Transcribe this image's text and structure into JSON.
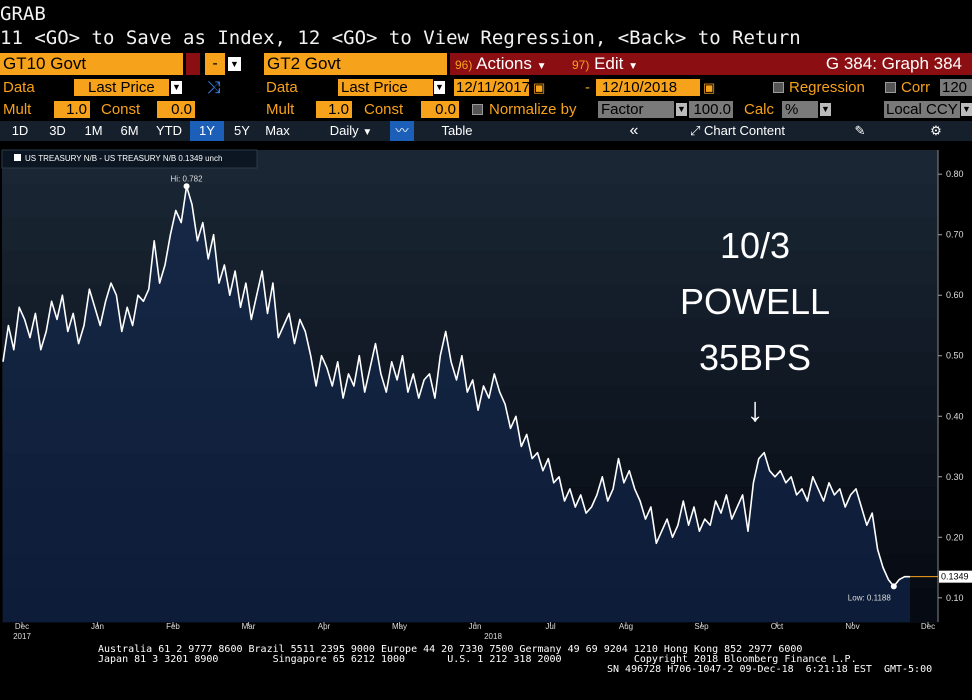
{
  "terminal": {
    "title": "GRAB",
    "command": "11 <GO> to Save as Index, 12 <GO> to View Regression, <Back> to Return"
  },
  "security_bar": {
    "security1": "GT10 Govt",
    "operator": "-",
    "security2": "GT2 Govt",
    "actions_num": "96)",
    "actions_label": "Actions",
    "edit_num": "97)",
    "edit_label": "Edit",
    "graph_id": "G 384: Graph 384"
  },
  "data_bar": {
    "data_label": "Data",
    "data1_value": "Last Price",
    "data2_label": "Data",
    "data2_value": "Last Price",
    "start_date": "12/11/2017",
    "date_sep": "-",
    "end_date": "12/10/2018",
    "regression_label": "Regression",
    "corr_label": "Corr",
    "corr_value": "120"
  },
  "mult_bar": {
    "mult_label": "Mult",
    "mult1": "1.0",
    "const_label": "Const",
    "const1": "0.0",
    "mult2_label": "Mult",
    "mult2": "1.0",
    "const2_label": "Const",
    "const2": "0.0",
    "normalize_label": "Normalize by",
    "normalize_value": "Factor",
    "normalize_amount": "100.0",
    "calc_label": "Calc",
    "calc_value": "%",
    "ccy_value": "Local CCY"
  },
  "toolbar": {
    "periods": [
      "1D",
      "3D",
      "1M",
      "6M",
      "YTD",
      "1Y",
      "5Y",
      "Max"
    ],
    "active_period": "1Y",
    "frequency": "Daily",
    "table_label": "Table",
    "collapse_glyph": "«",
    "chart_content_label": "Chart Content"
  },
  "chart_data": {
    "type": "line",
    "legend": "US TREASURY N/B - US TREASURY N/B 0.1349 unch",
    "y_ticks": [
      0.1,
      0.2,
      0.3,
      0.4,
      0.5,
      0.6,
      0.7,
      0.8
    ],
    "ylim": [
      0.06,
      0.84
    ],
    "x_tick_labels": [
      "Dec",
      "Jan",
      "Feb",
      "Mar",
      "Apr",
      "May",
      "Jun",
      "Jul",
      "Aug",
      "Sep",
      "Oct",
      "Nov",
      "Dec"
    ],
    "x_year_labels": [
      "2017",
      "2018"
    ],
    "last_value_label": "0.1349",
    "high_label": "Hi: 0.782",
    "low_label": "Low: 0.1188",
    "series": [
      {
        "values": [
          0.49,
          0.55,
          0.51,
          0.58,
          0.56,
          0.53,
          0.57,
          0.51,
          0.54,
          0.59,
          0.56,
          0.6,
          0.54,
          0.57,
          0.52,
          0.55,
          0.61,
          0.58,
          0.55,
          0.59,
          0.62,
          0.6,
          0.54,
          0.58,
          0.55,
          0.6,
          0.59,
          0.61,
          0.69,
          0.62,
          0.65,
          0.7,
          0.74,
          0.72,
          0.78,
          0.75,
          0.69,
          0.72,
          0.66,
          0.7,
          0.62,
          0.65,
          0.6,
          0.64,
          0.58,
          0.62,
          0.56,
          0.6,
          0.64,
          0.57,
          0.62,
          0.53,
          0.55,
          0.57,
          0.52,
          0.56,
          0.54,
          0.5,
          0.45,
          0.5,
          0.48,
          0.45,
          0.49,
          0.43,
          0.47,
          0.45,
          0.5,
          0.44,
          0.48,
          0.52,
          0.47,
          0.44,
          0.49,
          0.46,
          0.5,
          0.44,
          0.47,
          0.43,
          0.46,
          0.47,
          0.43,
          0.5,
          0.54,
          0.49,
          0.46,
          0.5,
          0.44,
          0.46,
          0.41,
          0.45,
          0.43,
          0.47,
          0.44,
          0.42,
          0.38,
          0.4,
          0.35,
          0.37,
          0.33,
          0.34,
          0.31,
          0.33,
          0.29,
          0.3,
          0.26,
          0.28,
          0.25,
          0.27,
          0.24,
          0.25,
          0.27,
          0.3,
          0.26,
          0.28,
          0.33,
          0.29,
          0.31,
          0.28,
          0.26,
          0.23,
          0.25,
          0.19,
          0.21,
          0.23,
          0.2,
          0.22,
          0.26,
          0.22,
          0.25,
          0.21,
          0.23,
          0.22,
          0.26,
          0.24,
          0.27,
          0.23,
          0.25,
          0.27,
          0.21,
          0.29,
          0.33,
          0.34,
          0.31,
          0.3,
          0.31,
          0.29,
          0.3,
          0.27,
          0.28,
          0.26,
          0.3,
          0.28,
          0.26,
          0.29,
          0.27,
          0.28,
          0.25,
          0.27,
          0.28,
          0.25,
          0.22,
          0.24,
          0.18,
          0.15,
          0.13,
          0.1188,
          0.13,
          0.1349,
          0.1349
        ]
      }
    ]
  },
  "annotation": {
    "line1": "10/3",
    "line2": "POWELL",
    "line3": "35BPS",
    "arrow": "↓"
  },
  "footer": {
    "line1": "Australia 61 2 9777 8600 Brazil 5511 2395 9000 Europe 44 20 7330 7500 Germany 49 69 9204 1210 Hong Kong 852 2977 6000",
    "line2": "Japan 81 3 3201 8900         Singapore 65 6212 1000       U.S. 1 212 318 2000            Copyright 2018 Bloomberg Finance L.P.",
    "line3": "SN 496728 H706-1047-2 09-Dec-18  6:21:18 EST  GMT-5:00"
  },
  "colors": {
    "bbg_orange": "#f7a21b",
    "bbg_red": "#8b0e12",
    "active_tab": "#1b5fb8"
  }
}
